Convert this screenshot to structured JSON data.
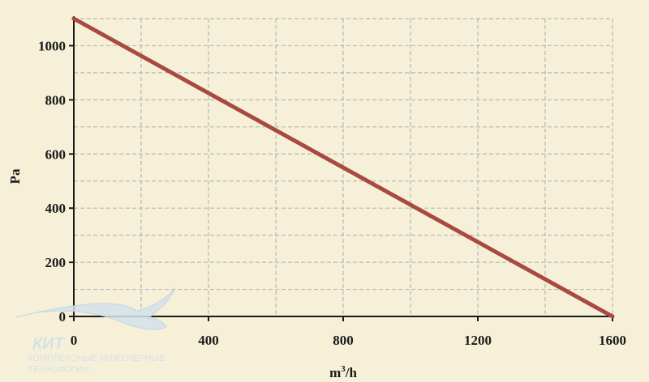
{
  "chart_data": {
    "type": "line",
    "title": "",
    "xlabel": "m3/h",
    "xlabel_base": "m",
    "xlabel_sup": "3",
    "xlabel_tail": "/h",
    "ylabel": "Pa",
    "xlim": [
      0,
      1600
    ],
    "ylim": [
      0,
      1100
    ],
    "x_ticks": [
      0,
      400,
      800,
      1200,
      1600
    ],
    "y_ticks": [
      0,
      200,
      400,
      600,
      800,
      1000
    ],
    "grid": true,
    "background": "#f6f0d8",
    "grid_color": "#b8b8b8",
    "series": [
      {
        "color": "#a84a42",
        "x": [
          0,
          1600
        ],
        "y": [
          1100,
          0
        ]
      }
    ]
  },
  "watermark": {
    "brand": "КИТ",
    "line1": "КОМПЛЕКСНЫЕ ИНЖЕНЕРНЫЕ",
    "line2": "ТЕХНОЛОГИИ",
    "color": "#cfe0e8"
  }
}
